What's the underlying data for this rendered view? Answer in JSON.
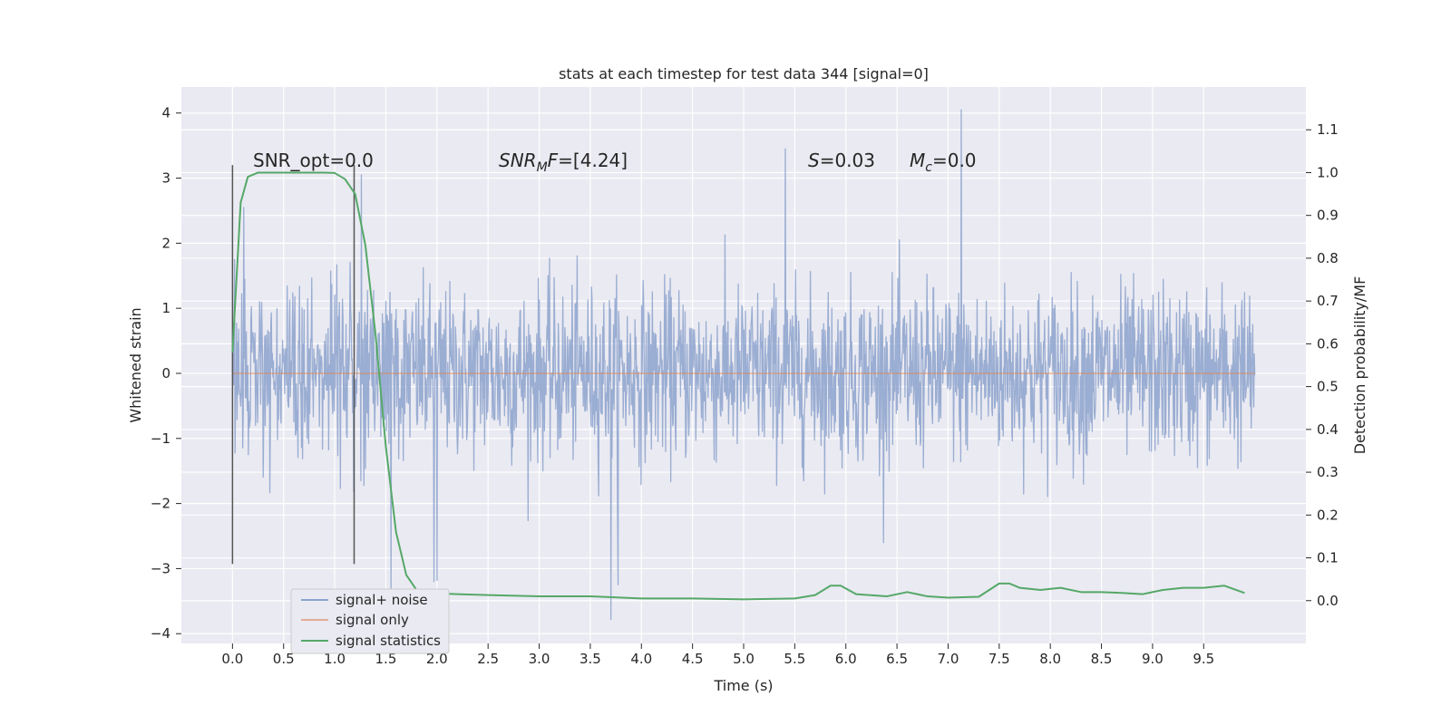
{
  "chart_data": {
    "type": "line",
    "title": "stats at each timestep for test data 344 [signal=0]",
    "xlabel": "Time (s)",
    "ylabel_left": "Whitened strain",
    "ylabel_right": "Detection probability/MF",
    "xlim": [
      -0.5,
      10.5
    ],
    "ylim_left": [
      -4.15,
      4.4
    ],
    "ylim_right": [
      -0.1,
      1.2
    ],
    "x_ticks": [
      "0.0",
      "0.5",
      "1.0",
      "1.5",
      "2.0",
      "2.5",
      "3.0",
      "3.5",
      "4.0",
      "4.5",
      "5.0",
      "5.5",
      "6.0",
      "6.5",
      "7.0",
      "7.5",
      "8.0",
      "8.5",
      "9.0",
      "9.5"
    ],
    "y_left_ticks": [
      "4",
      "3",
      "2",
      "1",
      "0",
      "−1",
      "−2",
      "−3",
      "−4"
    ],
    "y_right_ticks": [
      "1.1",
      "1.0",
      "0.9",
      "0.8",
      "0.7",
      "0.6",
      "0.5",
      "0.4",
      "0.3",
      "0.2",
      "0.1",
      "0.0"
    ],
    "grid": true,
    "legend_placement": "lower-left",
    "annotations": {
      "snr_opt": "SNR_opt=0.0",
      "snr_mf_var": "SNR",
      "snr_mf_sub": "M",
      "snr_mf_var2": "F",
      "snr_mf_value": "=[4.24]",
      "s_var": "S",
      "s_value": "=0.03",
      "mc_var": "M",
      "mc_sub": "c",
      "mc_value": "=0.0"
    },
    "markers": {
      "window_start_x": 0.0,
      "window_end_x": 1.19,
      "left_range": [
        -2.93,
        3.2
      ]
    },
    "series": [
      {
        "name": "signal+ noise",
        "color": "#8ca2cc",
        "axis": "left",
        "x_range": [
          0,
          10
        ],
        "samples": 2000,
        "typical_abs": 0.65,
        "spike_max": 2.6,
        "notable_peaks": [
          [
            0.11,
            2.55
          ],
          [
            1.26,
            3.05
          ],
          [
            5.41,
            3.45
          ],
          [
            7.13,
            4.05
          ],
          [
            1.55,
            -3.35
          ],
          [
            3.7,
            -3.78
          ],
          [
            3.77,
            -3.25
          ],
          [
            1.97,
            -3.2
          ],
          [
            2.0,
            -3.18
          ]
        ]
      },
      {
        "name": "signal only",
        "color": "#dd8452",
        "axis": "left",
        "x": [
          0,
          10
        ],
        "y": [
          0,
          0
        ]
      },
      {
        "name": "signal statistics",
        "color": "#55a868",
        "axis": "right",
        "x": [
          0.0,
          0.08,
          0.15,
          0.25,
          0.5,
          0.7,
          0.9,
          1.0,
          1.1,
          1.2,
          1.3,
          1.4,
          1.5,
          1.6,
          1.7,
          1.8,
          1.9,
          2.0,
          2.2,
          2.5,
          3.0,
          3.5,
          4.0,
          4.5,
          5.0,
          5.5,
          5.7,
          5.85,
          5.95,
          6.1,
          6.4,
          6.6,
          6.8,
          7.0,
          7.3,
          7.5,
          7.6,
          7.7,
          7.9,
          8.1,
          8.3,
          8.5,
          8.7,
          8.9,
          9.1,
          9.3,
          9.5,
          9.7,
          9.9
        ],
        "y": [
          0.58,
          0.93,
          0.99,
          1.0,
          1.0,
          1.0,
          1.0,
          0.999,
          0.985,
          0.95,
          0.83,
          0.62,
          0.36,
          0.16,
          0.06,
          0.025,
          0.02,
          0.017,
          0.015,
          0.013,
          0.01,
          0.01,
          0.005,
          0.005,
          0.003,
          0.005,
          0.013,
          0.035,
          0.035,
          0.015,
          0.01,
          0.02,
          0.01,
          0.007,
          0.009,
          0.04,
          0.04,
          0.03,
          0.025,
          0.03,
          0.02,
          0.02,
          0.018,
          0.015,
          0.025,
          0.03,
          0.03,
          0.035,
          0.018
        ]
      }
    ]
  }
}
